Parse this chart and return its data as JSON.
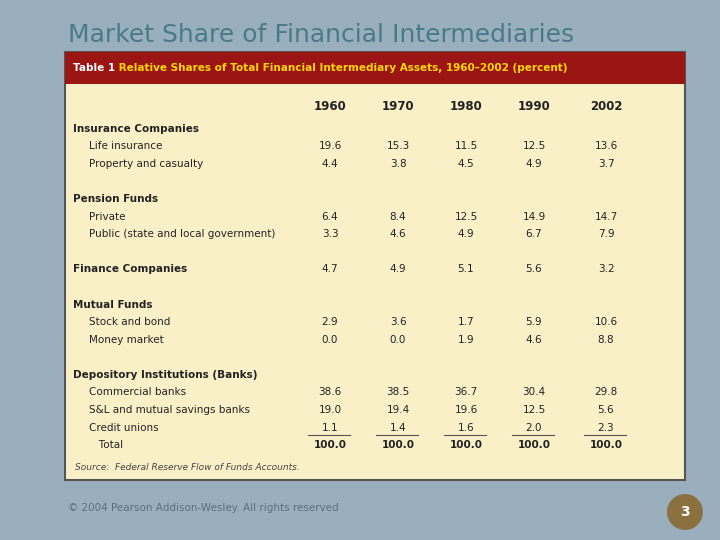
{
  "title": "Market Share of Financial Intermediaries",
  "title_color": "#4A7A8A",
  "bg_color": "#9AAFBE",
  "table_bg": "#FAF0C8",
  "header_bg": "#9B1515",
  "header_text_white": "Table 1",
  "header_text_yellow": " Relative Shares of Total Financial Intermediary Assets, 1960–2002 (percent)",
  "header_text_color": "#FFD700",
  "years": [
    "1960",
    "1970",
    "1980",
    "1990",
    "2002"
  ],
  "rows": [
    {
      "label": "Insurance Companies",
      "bold": true,
      "underline": false,
      "indent": 0,
      "values": [
        null,
        null,
        null,
        null,
        null
      ]
    },
    {
      "label": "Life insurance",
      "bold": false,
      "underline": false,
      "indent": 1,
      "values": [
        19.6,
        15.3,
        11.5,
        12.5,
        13.6
      ]
    },
    {
      "label": "Property and casualty",
      "bold": false,
      "underline": false,
      "indent": 1,
      "values": [
        4.4,
        3.8,
        4.5,
        4.9,
        3.7
      ]
    },
    {
      "label": "",
      "bold": false,
      "underline": false,
      "indent": 0,
      "values": [
        null,
        null,
        null,
        null,
        null
      ]
    },
    {
      "label": "Pension Funds",
      "bold": true,
      "underline": false,
      "indent": 0,
      "values": [
        null,
        null,
        null,
        null,
        null
      ]
    },
    {
      "label": "Private",
      "bold": false,
      "underline": false,
      "indent": 1,
      "values": [
        6.4,
        8.4,
        12.5,
        14.9,
        14.7
      ]
    },
    {
      "label": "Public (state and local government)",
      "bold": false,
      "underline": false,
      "indent": 1,
      "values": [
        3.3,
        4.6,
        4.9,
        6.7,
        7.9
      ]
    },
    {
      "label": "",
      "bold": false,
      "underline": false,
      "indent": 0,
      "values": [
        null,
        null,
        null,
        null,
        null
      ]
    },
    {
      "label": "Finance Companies",
      "bold": true,
      "underline": false,
      "indent": 0,
      "values": [
        4.7,
        4.9,
        5.1,
        5.6,
        3.2
      ]
    },
    {
      "label": "",
      "bold": false,
      "underline": false,
      "indent": 0,
      "values": [
        null,
        null,
        null,
        null,
        null
      ]
    },
    {
      "label": "Mutual Funds",
      "bold": true,
      "underline": false,
      "indent": 0,
      "values": [
        null,
        null,
        null,
        null,
        null
      ]
    },
    {
      "label": "Stock and bond",
      "bold": false,
      "underline": false,
      "indent": 1,
      "values": [
        2.9,
        3.6,
        1.7,
        5.9,
        10.6
      ]
    },
    {
      "label": "Money market",
      "bold": false,
      "underline": false,
      "indent": 1,
      "values": [
        0.0,
        0.0,
        1.9,
        4.6,
        8.8
      ]
    },
    {
      "label": "",
      "bold": false,
      "underline": false,
      "indent": 0,
      "values": [
        null,
        null,
        null,
        null,
        null
      ]
    },
    {
      "label": "Depository Institutions (Banks)",
      "bold": true,
      "underline": false,
      "indent": 0,
      "values": [
        null,
        null,
        null,
        null,
        null
      ]
    },
    {
      "label": "Commercial banks",
      "bold": false,
      "underline": false,
      "indent": 1,
      "values": [
        38.6,
        38.5,
        36.7,
        30.4,
        29.8
      ]
    },
    {
      "label": "S&L and mutual savings banks",
      "bold": false,
      "underline": false,
      "indent": 1,
      "values": [
        19.0,
        19.4,
        19.6,
        12.5,
        5.6
      ]
    },
    {
      "label": "Credit unions",
      "bold": false,
      "underline": true,
      "indent": 1,
      "values": [
        1.1,
        1.4,
        1.6,
        2.0,
        2.3
      ]
    },
    {
      "label": "   Total",
      "bold": false,
      "underline": false,
      "indent": 1,
      "total": true,
      "values": [
        100.0,
        100.0,
        100.0,
        100.0,
        100.0
      ]
    }
  ],
  "source_text": "Source:  Federal Reserve Flow of Funds Accounts.",
  "footer_text": "© 2004 Pearson Addison-Wesley. All rights reserved",
  "footer_color": "#5A7080",
  "page_number": "3",
  "coin_color": "#8B7040"
}
